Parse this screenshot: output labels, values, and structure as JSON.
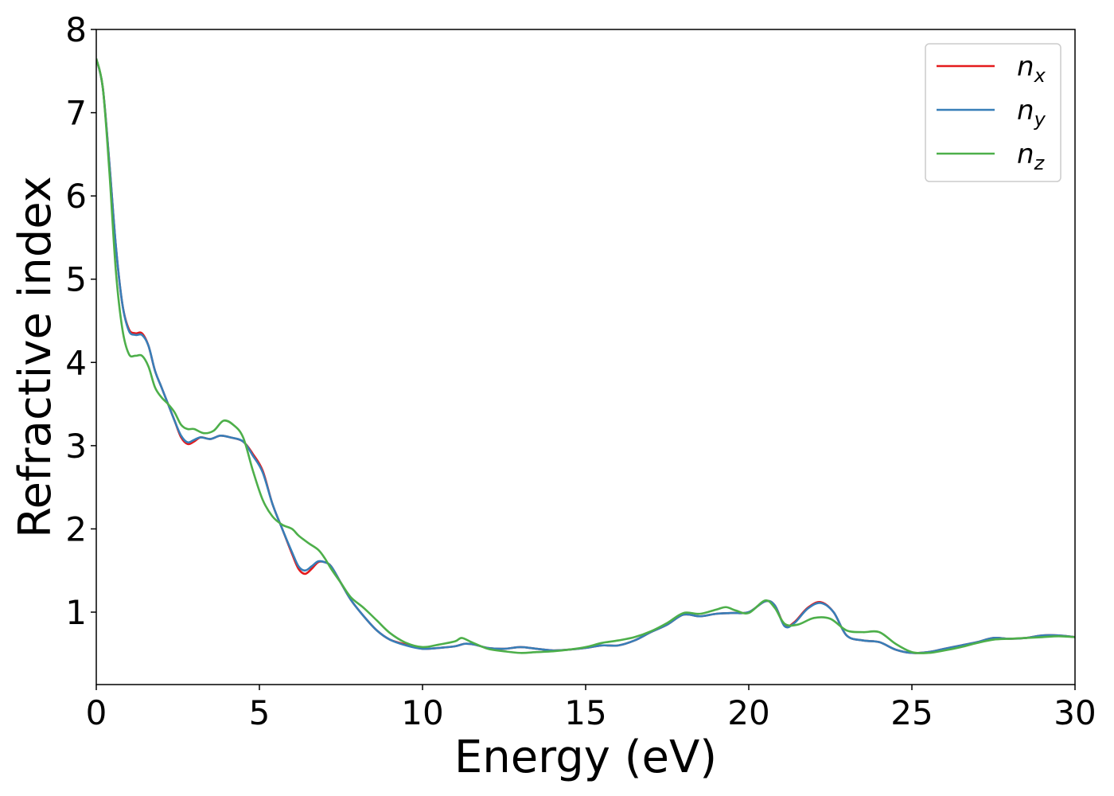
{
  "chart_data": {
    "type": "line",
    "xlabel": "Energy (eV)",
    "ylabel": "Refractive index",
    "xlim": [
      0,
      30
    ],
    "ylim": [
      0.13,
      8.0
    ],
    "xticks": [
      0,
      5,
      10,
      15,
      20,
      25,
      30
    ],
    "xtick_labels": [
      "0",
      "5",
      "10",
      "15",
      "20",
      "25",
      "30"
    ],
    "yticks": [
      1,
      2,
      3,
      4,
      5,
      6,
      7,
      8
    ],
    "ytick_labels": [
      "1",
      "2",
      "3",
      "4",
      "5",
      "6",
      "7",
      "8"
    ],
    "grid": false,
    "legend_position": "top-right",
    "series": [
      {
        "name": "n_x",
        "legend_base": "n",
        "legend_sub": "x",
        "color": "#e41a1c",
        "points": [
          [
            0,
            7.65
          ],
          [
            0.2,
            7.3
          ],
          [
            0.4,
            6.4
          ],
          [
            0.6,
            5.4
          ],
          [
            0.8,
            4.7
          ],
          [
            1.0,
            4.4
          ],
          [
            1.2,
            4.35
          ],
          [
            1.4,
            4.35
          ],
          [
            1.6,
            4.2
          ],
          [
            1.8,
            3.9
          ],
          [
            2.0,
            3.7
          ],
          [
            2.2,
            3.5
          ],
          [
            2.4,
            3.3
          ],
          [
            2.6,
            3.1
          ],
          [
            2.8,
            3.02
          ],
          [
            3.0,
            3.05
          ],
          [
            3.2,
            3.1
          ],
          [
            3.5,
            3.08
          ],
          [
            3.8,
            3.12
          ],
          [
            4.1,
            3.1
          ],
          [
            4.5,
            3.05
          ],
          [
            4.8,
            2.9
          ],
          [
            5.1,
            2.7
          ],
          [
            5.4,
            2.3
          ],
          [
            5.7,
            2.0
          ],
          [
            6.0,
            1.7
          ],
          [
            6.2,
            1.52
          ],
          [
            6.4,
            1.46
          ],
          [
            6.6,
            1.52
          ],
          [
            6.8,
            1.6
          ],
          [
            7.0,
            1.6
          ],
          [
            7.2,
            1.55
          ],
          [
            7.5,
            1.35
          ],
          [
            7.8,
            1.15
          ],
          [
            8.2,
            0.95
          ],
          [
            8.6,
            0.78
          ],
          [
            9.0,
            0.67
          ],
          [
            9.5,
            0.61
          ],
          [
            10.0,
            0.56
          ],
          [
            10.5,
            0.57
          ],
          [
            11.0,
            0.59
          ],
          [
            11.3,
            0.62
          ],
          [
            11.6,
            0.61
          ],
          [
            12.0,
            0.57
          ],
          [
            12.5,
            0.56
          ],
          [
            13.0,
            0.58
          ],
          [
            13.5,
            0.56
          ],
          [
            14.0,
            0.54
          ],
          [
            14.5,
            0.55
          ],
          [
            15.0,
            0.57
          ],
          [
            15.5,
            0.6
          ],
          [
            16.0,
            0.6
          ],
          [
            16.5,
            0.66
          ],
          [
            17.0,
            0.76
          ],
          [
            17.5,
            0.85
          ],
          [
            18.0,
            0.97
          ],
          [
            18.5,
            0.95
          ],
          [
            19.0,
            0.98
          ],
          [
            19.5,
            0.99
          ],
          [
            20.0,
            1.0
          ],
          [
            20.5,
            1.13
          ],
          [
            20.8,
            1.08
          ],
          [
            21.1,
            0.84
          ],
          [
            21.4,
            0.88
          ],
          [
            21.8,
            1.05
          ],
          [
            22.2,
            1.12
          ],
          [
            22.6,
            1.0
          ],
          [
            23.0,
            0.72
          ],
          [
            23.5,
            0.66
          ],
          [
            24.0,
            0.64
          ],
          [
            24.5,
            0.55
          ],
          [
            25.0,
            0.51
          ],
          [
            25.5,
            0.52
          ],
          [
            26.0,
            0.56
          ],
          [
            26.5,
            0.6
          ],
          [
            27.0,
            0.64
          ],
          [
            27.5,
            0.69
          ],
          [
            28.0,
            0.68
          ],
          [
            28.5,
            0.69
          ],
          [
            29.0,
            0.72
          ],
          [
            29.5,
            0.72
          ],
          [
            30.0,
            0.7
          ]
        ]
      },
      {
        "name": "n_y",
        "legend_base": "n",
        "legend_sub": "y",
        "color": "#377eb8",
        "points": [
          [
            0,
            7.65
          ],
          [
            0.2,
            7.3
          ],
          [
            0.4,
            6.4
          ],
          [
            0.6,
            5.4
          ],
          [
            0.8,
            4.7
          ],
          [
            1.0,
            4.38
          ],
          [
            1.2,
            4.33
          ],
          [
            1.4,
            4.33
          ],
          [
            1.6,
            4.2
          ],
          [
            1.8,
            3.9
          ],
          [
            2.0,
            3.7
          ],
          [
            2.2,
            3.5
          ],
          [
            2.4,
            3.3
          ],
          [
            2.6,
            3.12
          ],
          [
            2.8,
            3.04
          ],
          [
            3.0,
            3.07
          ],
          [
            3.2,
            3.1
          ],
          [
            3.5,
            3.08
          ],
          [
            3.8,
            3.12
          ],
          [
            4.1,
            3.1
          ],
          [
            4.5,
            3.05
          ],
          [
            4.8,
            2.88
          ],
          [
            5.1,
            2.68
          ],
          [
            5.4,
            2.3
          ],
          [
            5.7,
            2.0
          ],
          [
            6.0,
            1.72
          ],
          [
            6.2,
            1.55
          ],
          [
            6.4,
            1.5
          ],
          [
            6.6,
            1.55
          ],
          [
            6.8,
            1.61
          ],
          [
            7.0,
            1.6
          ],
          [
            7.2,
            1.55
          ],
          [
            7.5,
            1.35
          ],
          [
            7.8,
            1.15
          ],
          [
            8.2,
            0.95
          ],
          [
            8.6,
            0.78
          ],
          [
            9.0,
            0.67
          ],
          [
            9.5,
            0.6
          ],
          [
            10.0,
            0.56
          ],
          [
            10.5,
            0.57
          ],
          [
            11.0,
            0.59
          ],
          [
            11.3,
            0.62
          ],
          [
            11.6,
            0.61
          ],
          [
            12.0,
            0.57
          ],
          [
            12.5,
            0.56
          ],
          [
            13.0,
            0.58
          ],
          [
            13.5,
            0.56
          ],
          [
            14.0,
            0.54
          ],
          [
            14.5,
            0.55
          ],
          [
            15.0,
            0.57
          ],
          [
            15.5,
            0.6
          ],
          [
            16.0,
            0.6
          ],
          [
            16.5,
            0.66
          ],
          [
            17.0,
            0.76
          ],
          [
            17.5,
            0.85
          ],
          [
            18.0,
            0.97
          ],
          [
            18.5,
            0.95
          ],
          [
            19.0,
            0.98
          ],
          [
            19.5,
            0.99
          ],
          [
            20.0,
            1.0
          ],
          [
            20.5,
            1.13
          ],
          [
            20.8,
            1.08
          ],
          [
            21.1,
            0.83
          ],
          [
            21.4,
            0.87
          ],
          [
            21.8,
            1.04
          ],
          [
            22.2,
            1.11
          ],
          [
            22.6,
            1.0
          ],
          [
            23.0,
            0.72
          ],
          [
            23.5,
            0.66
          ],
          [
            24.0,
            0.64
          ],
          [
            24.5,
            0.55
          ],
          [
            25.0,
            0.51
          ],
          [
            25.5,
            0.52
          ],
          [
            26.0,
            0.56
          ],
          [
            26.5,
            0.6
          ],
          [
            27.0,
            0.64
          ],
          [
            27.5,
            0.69
          ],
          [
            28.0,
            0.68
          ],
          [
            28.5,
            0.69
          ],
          [
            29.0,
            0.72
          ],
          [
            29.5,
            0.72
          ],
          [
            30.0,
            0.7
          ]
        ]
      },
      {
        "name": "n_z",
        "legend_base": "n",
        "legend_sub": "z",
        "color": "#4daf4a",
        "points": [
          [
            0,
            7.65
          ],
          [
            0.2,
            7.3
          ],
          [
            0.4,
            6.3
          ],
          [
            0.6,
            5.1
          ],
          [
            0.8,
            4.4
          ],
          [
            1.0,
            4.1
          ],
          [
            1.2,
            4.08
          ],
          [
            1.4,
            4.08
          ],
          [
            1.6,
            3.95
          ],
          [
            1.8,
            3.7
          ],
          [
            2.0,
            3.58
          ],
          [
            2.2,
            3.5
          ],
          [
            2.4,
            3.4
          ],
          [
            2.6,
            3.25
          ],
          [
            2.8,
            3.2
          ],
          [
            3.0,
            3.2
          ],
          [
            3.3,
            3.15
          ],
          [
            3.6,
            3.18
          ],
          [
            3.9,
            3.3
          ],
          [
            4.2,
            3.25
          ],
          [
            4.5,
            3.1
          ],
          [
            4.8,
            2.7
          ],
          [
            5.1,
            2.35
          ],
          [
            5.4,
            2.15
          ],
          [
            5.7,
            2.05
          ],
          [
            6.0,
            2.0
          ],
          [
            6.2,
            1.92
          ],
          [
            6.5,
            1.83
          ],
          [
            6.8,
            1.75
          ],
          [
            7.0,
            1.65
          ],
          [
            7.2,
            1.52
          ],
          [
            7.5,
            1.35
          ],
          [
            7.8,
            1.18
          ],
          [
            8.2,
            1.05
          ],
          [
            8.6,
            0.9
          ],
          [
            9.0,
            0.75
          ],
          [
            9.5,
            0.63
          ],
          [
            10.0,
            0.58
          ],
          [
            10.5,
            0.61
          ],
          [
            11.0,
            0.65
          ],
          [
            11.2,
            0.69
          ],
          [
            11.5,
            0.64
          ],
          [
            12.0,
            0.56
          ],
          [
            12.5,
            0.53
          ],
          [
            13.0,
            0.51
          ],
          [
            13.5,
            0.52
          ],
          [
            14.0,
            0.53
          ],
          [
            14.5,
            0.55
          ],
          [
            15.0,
            0.58
          ],
          [
            15.5,
            0.63
          ],
          [
            16.0,
            0.66
          ],
          [
            16.5,
            0.7
          ],
          [
            17.0,
            0.77
          ],
          [
            17.5,
            0.87
          ],
          [
            18.0,
            0.99
          ],
          [
            18.5,
            0.98
          ],
          [
            19.0,
            1.03
          ],
          [
            19.3,
            1.06
          ],
          [
            19.6,
            1.02
          ],
          [
            20.0,
            0.99
          ],
          [
            20.5,
            1.14
          ],
          [
            20.8,
            1.05
          ],
          [
            21.1,
            0.86
          ],
          [
            21.5,
            0.85
          ],
          [
            22.0,
            0.93
          ],
          [
            22.5,
            0.92
          ],
          [
            23.0,
            0.78
          ],
          [
            23.5,
            0.76
          ],
          [
            24.0,
            0.76
          ],
          [
            24.5,
            0.62
          ],
          [
            25.0,
            0.52
          ],
          [
            25.5,
            0.51
          ],
          [
            26.0,
            0.54
          ],
          [
            26.5,
            0.58
          ],
          [
            27.0,
            0.63
          ],
          [
            27.5,
            0.67
          ],
          [
            28.0,
            0.68
          ],
          [
            28.5,
            0.69
          ],
          [
            29.0,
            0.7
          ],
          [
            29.5,
            0.71
          ],
          [
            30.0,
            0.7
          ]
        ]
      }
    ]
  }
}
